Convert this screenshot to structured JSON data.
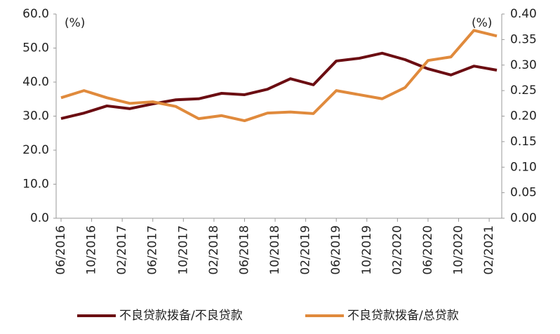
{
  "chart_data": {
    "type": "line",
    "annotations": [
      "(%)",
      "(%)"
    ],
    "x": [
      "06/2016",
      "09/2016",
      "12/2016",
      "03/2017",
      "06/2017",
      "09/2017",
      "12/2017",
      "03/2018",
      "06/2018",
      "09/2018",
      "12/2018",
      "03/2019",
      "06/2019",
      "09/2019",
      "12/2019",
      "03/2020",
      "06/2020",
      "09/2020",
      "12/2020",
      "03/2021"
    ],
    "xticks": [
      "06/2016",
      "10/2016",
      "02/2017",
      "06/2017",
      "10/2017",
      "02/2018",
      "06/2018",
      "10/2018",
      "02/2019",
      "06/2019",
      "10/2019",
      "02/2020",
      "06/2020",
      "10/2020",
      "02/2021"
    ],
    "ylim": [
      0,
      60
    ],
    "yticks": [
      {
        "value": 0,
        "label": "0.0"
      },
      {
        "value": 10,
        "label": "10.0"
      },
      {
        "value": 20,
        "label": "20.0"
      },
      {
        "value": 30,
        "label": "30.0"
      },
      {
        "value": 40,
        "label": "40.0"
      },
      {
        "value": 50,
        "label": "50.0"
      },
      {
        "value": 60,
        "label": "60.0"
      }
    ],
    "y2lim": [
      0,
      0.4
    ],
    "y2ticks": [
      {
        "value": 0,
        "label": "0.00"
      },
      {
        "value": 0.05,
        "label": "0.05"
      },
      {
        "value": 0.1,
        "label": "0.10"
      },
      {
        "value": 0.15,
        "label": "0.15"
      },
      {
        "value": 0.2,
        "label": "0.20"
      },
      {
        "value": 0.25,
        "label": "0.25"
      },
      {
        "value": 0.3,
        "label": "0.30"
      },
      {
        "value": 0.35,
        "label": "0.35"
      },
      {
        "value": 0.4,
        "label": "0.40"
      }
    ],
    "legend": "bottom",
    "series": [
      {
        "name": "不良贷款拨备/不良贷款",
        "color": "#6b0d12",
        "values": [
          29.3,
          30.9,
          33.0,
          32.2,
          33.6,
          34.8,
          35.1,
          36.7,
          36.3,
          37.9,
          41.0,
          39.2,
          46.2,
          47.0,
          48.5,
          46.6,
          43.9,
          42.1,
          44.7,
          43.5
        ]
      },
      {
        "name": "不良贷款拨备/总贷款",
        "color": "#e08a3c",
        "axis": "y2",
        "values": [
          0.236,
          0.25,
          0.236,
          0.225,
          0.228,
          0.219,
          0.195,
          0.201,
          0.191,
          0.206,
          0.208,
          0.205,
          0.25,
          0.242,
          0.234,
          0.256,
          0.309,
          0.316,
          0.368,
          0.357
        ]
      }
    ]
  }
}
